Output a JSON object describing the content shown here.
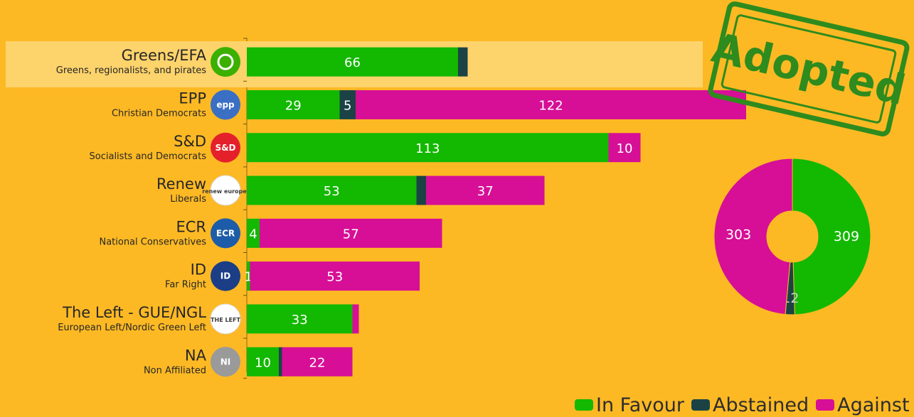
{
  "colors": {
    "background": "#FDB924",
    "in_favour": "#13B800",
    "abstained": "#1B4346",
    "against": "#D60F96",
    "highlight": "#FDD36B",
    "stamp": "#2E8B1E"
  },
  "stamp_text": "Adopted",
  "legend": [
    {
      "label": "In Favour",
      "color": "#13B800"
    },
    {
      "label": "Abstained",
      "color": "#1B4346"
    },
    {
      "label": "Against",
      "color": "#D60F96"
    }
  ],
  "chart_data": [
    {
      "type": "bar",
      "orientation": "horizontal",
      "stacked": true,
      "categories": [
        {
          "name": "Greens/EFA",
          "subtitle": "Greens, regionalists, and pirates",
          "logo_icon": "greens-efa-logo-icon",
          "logo_color": "#3BB000",
          "logo_text": ""
        },
        {
          "name": "EPP",
          "subtitle": "Christian Democrats",
          "logo_icon": "epp-logo-icon",
          "logo_color": "#3A6FC4",
          "logo_text": "epp"
        },
        {
          "name": "S&D",
          "subtitle": "Socialists and Democrats",
          "logo_icon": "sd-logo-icon",
          "logo_color": "#E4202A",
          "logo_text": "S&D"
        },
        {
          "name": "Renew",
          "subtitle": "Liberals",
          "logo_icon": "renew-logo-icon",
          "logo_color": "#FFFFFF",
          "logo_text": "renew europe."
        },
        {
          "name": "ECR",
          "subtitle": "National Conservatives",
          "logo_icon": "ecr-logo-icon",
          "logo_color": "#1D5CA8",
          "logo_text": "ECR"
        },
        {
          "name": "ID",
          "subtitle": "Far Right",
          "logo_icon": "id-logo-icon",
          "logo_color": "#1B3E86",
          "logo_text": "ID"
        },
        {
          "name": "The Left - GUE/NGL",
          "subtitle": "European Left/Nordic Green Left",
          "logo_icon": "the-left-logo-icon",
          "logo_color": "#FFFFFF",
          "logo_text": "THE LEFT"
        },
        {
          "name": "NA",
          "subtitle": "Non Affiliated",
          "logo_icon": "ni-logo-icon",
          "logo_color": "#9A9A9A",
          "logo_text": "NI"
        }
      ],
      "series": [
        {
          "name": "In Favour",
          "values": [
            66,
            29,
            113,
            53,
            4,
            1,
            33,
            10
          ]
        },
        {
          "name": "Abstained",
          "values": [
            3,
            5,
            0,
            3,
            0,
            0,
            0,
            1
          ]
        },
        {
          "name": "Against",
          "values": [
            0,
            122,
            10,
            37,
            57,
            53,
            2,
            22
          ]
        }
      ],
      "data_labels": [
        [
          "66",
          "",
          ""
        ],
        [
          "29",
          "5",
          "122"
        ],
        [
          "113",
          "",
          "10"
        ],
        [
          "53",
          "",
          "37"
        ],
        [
          "4",
          "",
          "57"
        ],
        [
          "1",
          "",
          "53"
        ],
        [
          "33",
          "",
          ""
        ],
        [
          "10",
          "",
          "22"
        ]
      ],
      "highlighted_category": "Greens/EFA",
      "xlim": [
        0,
        160
      ]
    },
    {
      "type": "pie",
      "donut": true,
      "labels": [
        "In Favour",
        "Abstained",
        "Against"
      ],
      "values": [
        309,
        12,
        303
      ],
      "data_labels": [
        "309",
        "12",
        "303"
      ]
    }
  ]
}
